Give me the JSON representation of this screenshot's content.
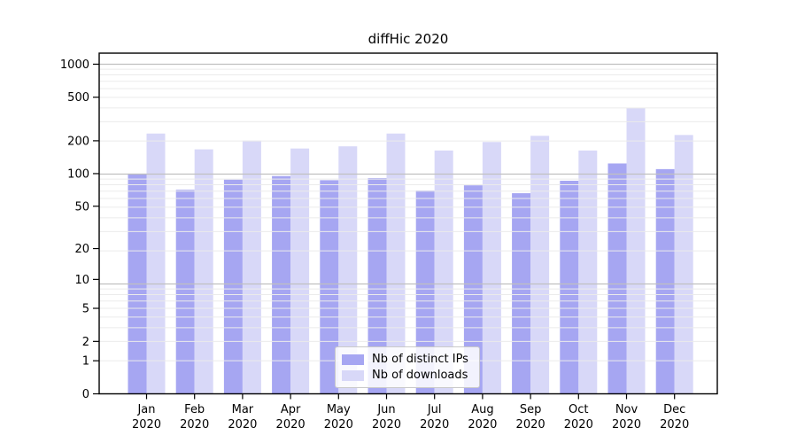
{
  "title": "diffHic 2020",
  "chart_data": {
    "type": "bar",
    "title": "diffHic 2020",
    "categories": [
      "Jan",
      "Feb",
      "Mar",
      "Apr",
      "May",
      "Jun",
      "Jul",
      "Aug",
      "Sep",
      "Oct",
      "Nov",
      "Dec"
    ],
    "category_year": "2020",
    "series": [
      {
        "name": "Nb of distinct IPs",
        "color": "#a6a6f2",
        "values": [
          100,
          71,
          88,
          95,
          87,
          91,
          70,
          78,
          66,
          86,
          124,
          110
        ]
      },
      {
        "name": "Nb of downloads",
        "color": "#d8d8f8",
        "values": [
          233,
          167,
          201,
          170,
          178,
          233,
          163,
          195,
          222,
          163,
          400,
          226
        ]
      }
    ],
    "y_scale": "log10(value+1)",
    "y_ticks": [
      1000,
      500,
      200,
      100,
      50,
      20,
      10,
      5,
      2,
      1,
      0
    ],
    "ylim": [
      0,
      1270
    ],
    "xlabel": "",
    "ylabel": "",
    "grid": "on",
    "legend_position": "lower center",
    "colors": {
      "minor_grid": "#ebebeb",
      "major_grid": "#c0c0c0",
      "spine": "#000000",
      "text": "#000000",
      "background": "#ffffff"
    }
  }
}
